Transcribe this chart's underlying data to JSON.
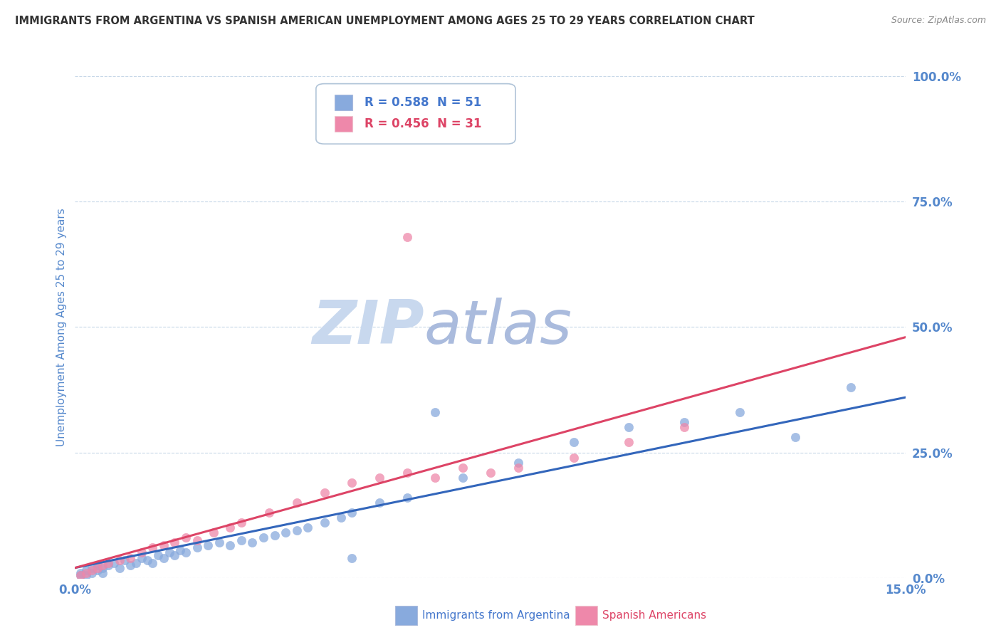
{
  "title": "IMMIGRANTS FROM ARGENTINA VS SPANISH AMERICAN UNEMPLOYMENT AMONG AGES 25 TO 29 YEARS CORRELATION CHART",
  "source": "Source: ZipAtlas.com",
  "ylabel_label": "Unemployment Among Ages 25 to 29 years",
  "blue_R": 0.588,
  "blue_N": 51,
  "pink_R": 0.456,
  "pink_N": 31,
  "legend_label_blue": "Immigrants from Argentina",
  "legend_label_pink": "Spanish Americans",
  "blue_color": "#88aadd",
  "pink_color": "#ee88aa",
  "trend_blue_color": "#3366bb",
  "trend_pink_color": "#dd4466",
  "legend_text_blue": "#4477cc",
  "legend_text_pink": "#dd4466",
  "axis_label_color": "#5588cc",
  "title_color": "#333333",
  "source_color": "#888888",
  "watermark_zip_color": "#c8d8ee",
  "watermark_atlas_color": "#aabbdd",
  "grid_color": "#c8d8e8",
  "background_color": "#ffffff",
  "blue_scatter_x": [
    0.001,
    0.001,
    0.002,
    0.002,
    0.003,
    0.003,
    0.004,
    0.004,
    0.005,
    0.005,
    0.006,
    0.007,
    0.008,
    0.009,
    0.01,
    0.011,
    0.012,
    0.013,
    0.014,
    0.015,
    0.016,
    0.017,
    0.018,
    0.019,
    0.02,
    0.022,
    0.024,
    0.026,
    0.028,
    0.03,
    0.032,
    0.034,
    0.036,
    0.038,
    0.04,
    0.042,
    0.045,
    0.048,
    0.05,
    0.055,
    0.06,
    0.065,
    0.07,
    0.08,
    0.09,
    0.1,
    0.11,
    0.12,
    0.13,
    0.14,
    0.05
  ],
  "blue_scatter_y": [
    0.005,
    0.01,
    0.005,
    0.015,
    0.01,
    0.02,
    0.015,
    0.025,
    0.01,
    0.02,
    0.025,
    0.03,
    0.02,
    0.035,
    0.025,
    0.03,
    0.04,
    0.035,
    0.03,
    0.045,
    0.04,
    0.05,
    0.045,
    0.055,
    0.05,
    0.06,
    0.065,
    0.07,
    0.065,
    0.075,
    0.07,
    0.08,
    0.085,
    0.09,
    0.095,
    0.1,
    0.11,
    0.12,
    0.13,
    0.15,
    0.16,
    0.33,
    0.2,
    0.23,
    0.27,
    0.3,
    0.31,
    0.33,
    0.28,
    0.38,
    0.04
  ],
  "pink_scatter_x": [
    0.001,
    0.002,
    0.003,
    0.004,
    0.005,
    0.006,
    0.008,
    0.01,
    0.012,
    0.014,
    0.016,
    0.018,
    0.02,
    0.022,
    0.025,
    0.028,
    0.03,
    0.035,
    0.04,
    0.045,
    0.05,
    0.055,
    0.06,
    0.065,
    0.07,
    0.075,
    0.08,
    0.09,
    0.1,
    0.11,
    0.06
  ],
  "pink_scatter_y": [
    0.005,
    0.01,
    0.015,
    0.02,
    0.025,
    0.03,
    0.035,
    0.04,
    0.05,
    0.06,
    0.065,
    0.07,
    0.08,
    0.075,
    0.09,
    0.1,
    0.11,
    0.13,
    0.15,
    0.17,
    0.19,
    0.2,
    0.21,
    0.2,
    0.22,
    0.21,
    0.22,
    0.24,
    0.27,
    0.3,
    0.68
  ],
  "blue_trend_x0": 0.0,
  "blue_trend_y0": 0.02,
  "blue_trend_x1": 0.15,
  "blue_trend_y1": 0.36,
  "pink_trend_x0": 0.0,
  "pink_trend_y0": 0.02,
  "pink_trend_x1": 0.15,
  "pink_trend_y1": 0.48,
  "xlim": [
    0.0,
    0.15
  ],
  "ylim": [
    0.0,
    1.0
  ],
  "yticks": [
    0.0,
    0.25,
    0.5,
    0.75,
    1.0
  ],
  "ytick_labels": [
    "0.0%",
    "25.0%",
    "50.0%",
    "75.0%",
    "100.0%"
  ]
}
